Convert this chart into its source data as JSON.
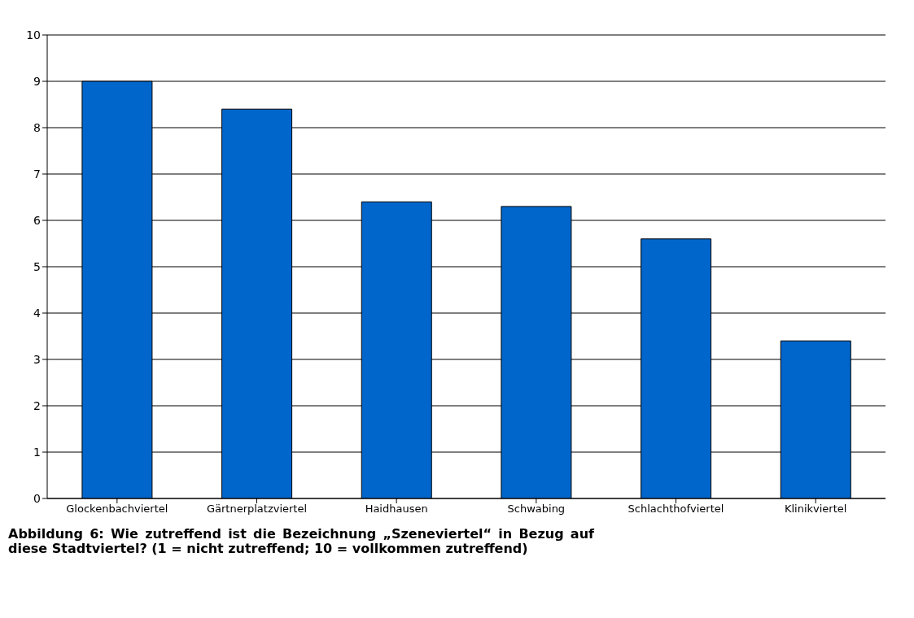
{
  "chart_data": {
    "type": "bar",
    "categories": [
      "Glockenbachviertel",
      "Gärtnerplatzviertel",
      "Haidhausen",
      "Schwabing",
      "Schlachthofviertel",
      "Klinikviertel"
    ],
    "values": [
      9,
      8.4,
      6.4,
      6.3,
      5.6,
      3.4
    ],
    "color": "#0066cc",
    "ylim": [
      0,
      10
    ],
    "yticks": [
      0,
      1,
      2,
      3,
      4,
      5,
      6,
      7,
      8,
      9,
      10
    ],
    "grid": "y",
    "annotations": [
      "Abbildung 6: Wie zutreffend ist die Bezeichnung „Szeneviertel“ in Bezug auf diese Stadtviertel?  (1 = nicht zutreffend; 10 = vollkommen zutreffend)"
    ]
  }
}
